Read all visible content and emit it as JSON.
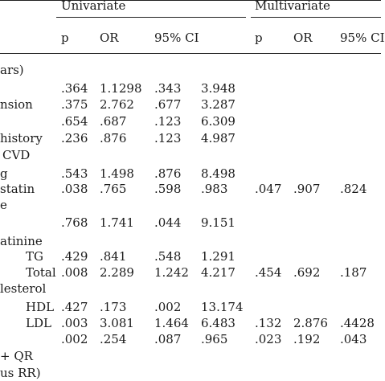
{
  "groups": {
    "univariate": "Univariate",
    "multivariate": "Multivariate"
  },
  "columns": {
    "uni": [
      "p",
      "OR",
      "95% CI"
    ],
    "multi": [
      "p",
      "OR",
      "95% CI"
    ]
  },
  "rows": [
    {
      "label": "ars)",
      "uni": [
        "",
        "",
        "",
        ""
      ],
      "multi": [
        "",
        "",
        ""
      ]
    },
    {
      "label": "",
      "uni": [
        ".364",
        "1.1298",
        ".343",
        "3.948"
      ],
      "multi": [
        "",
        "",
        ""
      ]
    },
    {
      "label": "nsion",
      "uni": [
        ".375",
        "2.762",
        ".677",
        "3.287"
      ],
      "multi": [
        "",
        "",
        ""
      ]
    },
    {
      "label": "",
      "uni": [
        ".654",
        ".687",
        ".123",
        "6.309"
      ],
      "multi": [
        "",
        "",
        ""
      ]
    },
    {
      "label": "history",
      "uni": [
        ".236",
        ".876",
        ".123",
        "4.987"
      ],
      "multi": [
        "",
        "",
        ""
      ]
    },
    {
      "label": "CVD",
      "uni": [
        "",
        "",
        "",
        ""
      ],
      "multi": [
        "",
        "",
        ""
      ]
    },
    {
      "label": "g",
      "uni": [
        ".543",
        "1.498",
        ".876",
        "8.498"
      ],
      "multi": [
        "",
        "",
        ""
      ]
    },
    {
      "label": "statin",
      "uni": [
        ".038",
        ".765",
        ".598",
        ".983"
      ],
      "multi": [
        ".047",
        ".907",
        ".824"
      ]
    },
    {
      "label": "e",
      "uni": [
        "",
        "",
        "",
        ""
      ],
      "multi": [
        "",
        "",
        ""
      ]
    },
    {
      "label": "",
      "uni": [
        ".768",
        "1.741",
        ".044",
        "9.151"
      ],
      "multi": [
        "",
        "",
        ""
      ]
    },
    {
      "label": "atinine",
      "uni": [
        "",
        "",
        "",
        ""
      ],
      "multi": [
        "",
        "",
        ""
      ]
    },
    {
      "label": "TG",
      "uni": [
        ".429",
        ".841",
        ".548",
        "1.291"
      ],
      "multi": [
        "",
        "",
        ""
      ]
    },
    {
      "label": "Total",
      "uni": [
        ".008",
        "2.289",
        "1.242",
        "4.217"
      ],
      "multi": [
        ".454",
        ".692",
        ".187"
      ]
    },
    {
      "label": "lesterol",
      "uni": [
        "",
        "",
        "",
        ""
      ],
      "multi": [
        "",
        "",
        ""
      ]
    },
    {
      "label": "HDL",
      "uni": [
        ".427",
        ".173",
        ".002",
        "13.174"
      ],
      "multi": [
        "",
        "",
        ""
      ]
    },
    {
      "label": "LDL",
      "uni": [
        ".003",
        "3.081",
        "1.464",
        "6.483"
      ],
      "multi": [
        ".132",
        "2.876",
        ".4428"
      ]
    },
    {
      "label": "",
      "uni": [
        ".002",
        ".254",
        ".087",
        ".965"
      ],
      "multi": [
        ".023",
        ".192",
        ".043"
      ]
    },
    {
      "label": "+ QR",
      "uni": [
        "",
        "",
        "",
        ""
      ],
      "multi": [
        "",
        "",
        ""
      ]
    },
    {
      "label": "us RR)",
      "uni": [
        "",
        "",
        "",
        ""
      ],
      "multi": [
        "",
        "",
        ""
      ]
    }
  ]
}
